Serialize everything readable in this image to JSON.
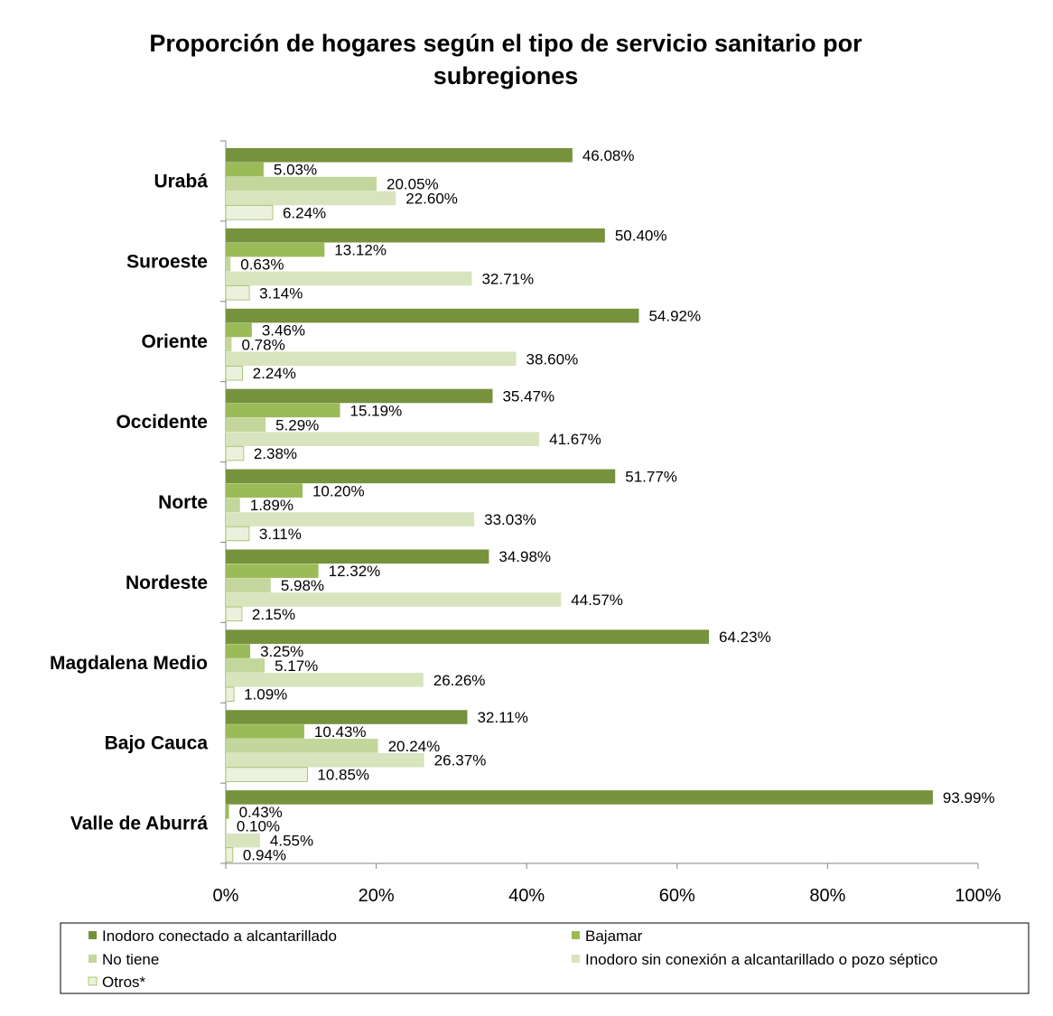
{
  "chart_data": {
    "type": "bar",
    "orientation": "horizontal",
    "title": "Proporción de hogares según el tipo de servicio sanitario  por\nsubregiones",
    "xlim": [
      0,
      100
    ],
    "x_ticks": [
      "0%",
      "20%",
      "40%",
      "60%",
      "80%",
      "100%"
    ],
    "categories": [
      "Urabá",
      "Suroeste",
      "Oriente",
      "Occidente",
      "Norte",
      "Nordeste",
      "Magdalena Medio",
      "Bajo Cauca",
      "Valle de Aburrá"
    ],
    "series": [
      {
        "name": "Inodoro conectado a alcantarillado",
        "color": "#76923c",
        "values": [
          46.08,
          50.4,
          54.92,
          35.47,
          51.77,
          34.98,
          64.23,
          32.11,
          93.99
        ],
        "labels": [
          "46.08%",
          "50.40%",
          "54.92%",
          "35.47%",
          "51.77%",
          "34.98%",
          "64.23%",
          "32.11%",
          "93.99%"
        ]
      },
      {
        "name": "Bajamar",
        "color": "#9bbb59",
        "values": [
          5.03,
          13.12,
          3.46,
          15.19,
          10.2,
          12.32,
          3.25,
          10.43,
          0.43
        ],
        "labels": [
          "5.03%",
          "13.12%",
          "3.46%",
          "15.19%",
          "10.20%",
          "12.32%",
          "3.25%",
          "10.43%",
          "0.43%"
        ]
      },
      {
        "name": "No tiene",
        "color": "#c3d69b",
        "values": [
          20.05,
          0.63,
          0.78,
          5.29,
          1.89,
          5.98,
          5.17,
          20.24,
          0.1
        ],
        "labels": [
          "20.05%",
          "0.63%",
          "0.78%",
          "5.29%",
          "1.89%",
          "5.98%",
          "5.17%",
          "20.24%",
          "0.10%"
        ]
      },
      {
        "name": "Inodoro sin conexión a alcantarillado o pozo séptico",
        "color": "#d7e4bd",
        "values": [
          22.6,
          32.71,
          38.6,
          41.67,
          33.03,
          44.57,
          26.26,
          26.37,
          4.55
        ],
        "labels": [
          "22.60%",
          "32.71%",
          "38.60%",
          "41.67%",
          "33.03%",
          "44.57%",
          "26.26%",
          "26.37%",
          "4.55%"
        ]
      },
      {
        "name": "Otros*",
        "color": "#ebf1de",
        "values": [
          6.24,
          3.14,
          2.24,
          2.38,
          3.11,
          2.15,
          1.09,
          10.85,
          0.94
        ],
        "labels": [
          "6.24%",
          "3.14%",
          "2.24%",
          "2.38%",
          "3.11%",
          "2.15%",
          "1.09%",
          "10.85%",
          "0.94%"
        ]
      }
    ],
    "legend_position": "bottom",
    "grid": false
  }
}
